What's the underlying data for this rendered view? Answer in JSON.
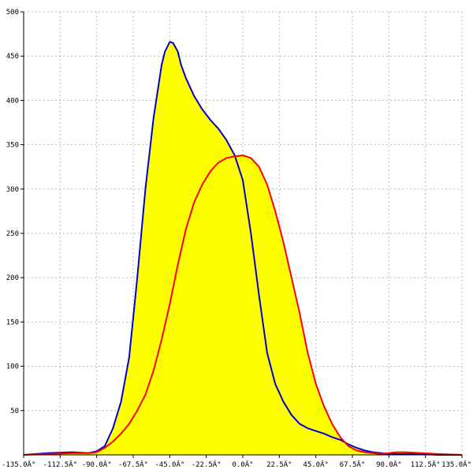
{
  "chart_data": {
    "type": "area",
    "title": "",
    "xlabel": "",
    "ylabel": "",
    "xlim": [
      -135,
      135
    ],
    "ylim": [
      0,
      500
    ],
    "grid": true,
    "x_ticks": [
      -135,
      -112.5,
      -90,
      -67.5,
      -45,
      -22.5,
      0,
      22.5,
      45,
      67.5,
      90,
      112.5,
      135
    ],
    "x_tick_labels": [
      "-135.0Â°",
      "-112.5Â°",
      "-90.0Â°",
      "-67.5Â°",
      "-45.0Â°",
      "-22.5Â°",
      "0.0Â°",
      "22.5Â°",
      "45.0Â°",
      "67.5Â°",
      "90.0Â°",
      "112.5Â°",
      "135.0Â°"
    ],
    "y_ticks": [
      50,
      100,
      150,
      200,
      250,
      300,
      350,
      400,
      450,
      500
    ],
    "y_tick_labels": [
      "50",
      "100",
      "150",
      "200",
      "250",
      "300",
      "350",
      "400",
      "450",
      "500"
    ],
    "fill_color": "#ffff00",
    "series": [
      {
        "color": "#0000cc",
        "x": [
          -135,
          -120,
          -105,
          -95,
          -90,
          -85,
          -80,
          -75,
          -70,
          -65,
          -60,
          -55,
          -50,
          -48,
          -45,
          -43,
          -40,
          -38,
          -35,
          -30,
          -25,
          -20,
          -15,
          -10,
          -5,
          0,
          5,
          10,
          15,
          20,
          25,
          30,
          35,
          40,
          45,
          50,
          55,
          60,
          65,
          70,
          75,
          80,
          85,
          90,
          100,
          110,
          120,
          135
        ],
        "y": [
          0,
          2,
          3,
          2,
          4,
          10,
          30,
          60,
          110,
          200,
          300,
          380,
          440,
          455,
          466,
          465,
          455,
          440,
          425,
          405,
          390,
          378,
          368,
          355,
          338,
          310,
          250,
          180,
          115,
          80,
          60,
          45,
          35,
          30,
          27,
          24,
          20,
          17,
          12,
          8,
          5,
          3,
          2,
          1,
          1,
          1,
          0,
          0
        ]
      },
      {
        "color": "#ff0000",
        "x": [
          -135,
          -120,
          -105,
          -95,
          -90,
          -85,
          -80,
          -75,
          -70,
          -65,
          -60,
          -55,
          -50,
          -45,
          -40,
          -35,
          -30,
          -25,
          -20,
          -15,
          -10,
          -5,
          0,
          5,
          10,
          15,
          20,
          25,
          30,
          35,
          40,
          45,
          50,
          55,
          60,
          65,
          70,
          75,
          80,
          85,
          90,
          95,
          100,
          110,
          120,
          135
        ],
        "y": [
          0,
          1,
          2,
          2,
          3,
          8,
          15,
          24,
          35,
          50,
          68,
          95,
          130,
          170,
          215,
          255,
          285,
          305,
          320,
          330,
          335,
          337,
          338,
          335,
          325,
          305,
          275,
          240,
          200,
          160,
          115,
          80,
          55,
          35,
          20,
          10,
          5,
          3,
          2,
          1,
          2,
          3,
          3,
          2,
          1,
          0
        ]
      }
    ]
  }
}
